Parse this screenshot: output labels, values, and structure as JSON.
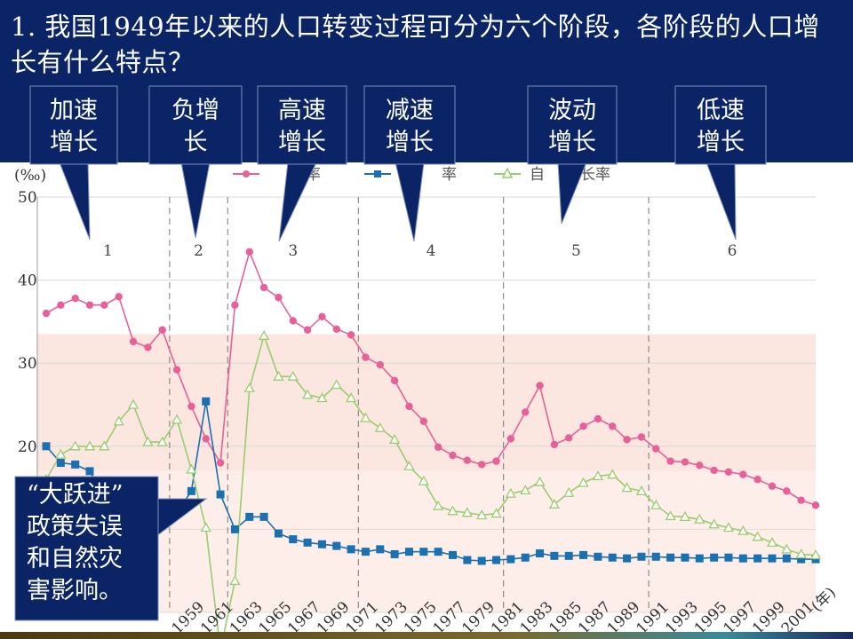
{
  "slide": {
    "question": "1. 我国1949年以来的人口转变过程可分为六个阶段，各阶段的人口增长有什么特点？"
  },
  "stage_callouts": [
    {
      "line1": "加速",
      "line2": "增长"
    },
    {
      "line1": "负增",
      "line2": "长"
    },
    {
      "line1": "高速",
      "line2": "增长"
    },
    {
      "line1": "减速",
      "line2": "增长"
    },
    {
      "line1": "波动",
      "line2": "增长"
    },
    {
      "line1": "低速",
      "line2": "增长"
    }
  ],
  "note": {
    "lines": [
      "“大跃进”",
      "政策失误",
      "和自然灾",
      "害影响。"
    ]
  },
  "colors": {
    "header_bg": "#0b2466",
    "callout_bg": "#0b2466",
    "birth": "#e8609a",
    "death": "#1a70b0",
    "natural": "#9acc70",
    "band": "#fbe6e0"
  },
  "chart_data": {
    "type": "line",
    "ylabel": "(‰)",
    "xlabel": "(年)",
    "ylim": [
      0,
      50
    ],
    "yticks": [
      20,
      30,
      40,
      50
    ],
    "xtick_labels": [
      "1959",
      "1961",
      "1963",
      "1965",
      "1967",
      "1969",
      "1971",
      "1973",
      "1975",
      "1977",
      "1979",
      "1981",
      "1983",
      "1985",
      "1987",
      "1989",
      "1991",
      "1993",
      "1995",
      "1997",
      "1999",
      "2001"
    ],
    "stage_labels": [
      "1",
      "2",
      "3",
      "4",
      "5",
      "6"
    ],
    "stage_boundaries": [
      1957.5,
      1961.5,
      1970.5,
      1980.5,
      1990.5
    ],
    "x": [
      1949,
      1950,
      1951,
      1952,
      1953,
      1954,
      1955,
      1956,
      1957,
      1958,
      1959,
      1960,
      1961,
      1962,
      1963,
      1964,
      1965,
      1966,
      1967,
      1968,
      1969,
      1970,
      1971,
      1972,
      1973,
      1974,
      1975,
      1976,
      1977,
      1978,
      1979,
      1980,
      1981,
      1982,
      1983,
      1984,
      1985,
      1986,
      1987,
      1988,
      1989,
      1990,
      1991,
      1992,
      1993,
      1994,
      1995,
      1996,
      1997,
      1998,
      1999,
      2000,
      2001,
      2002
    ],
    "legend_visible": [
      "生率",
      "死",
      "率",
      "自",
      "增长率"
    ],
    "series": [
      {
        "key": "birth",
        "values": [
          36.0,
          37.0,
          37.8,
          37.0,
          37.0,
          38.0,
          32.6,
          31.9,
          34.0,
          29.2,
          24.8,
          20.9,
          18.0,
          37.0,
          43.4,
          39.1,
          37.9,
          35.1,
          34.0,
          35.6,
          34.1,
          33.4,
          30.7,
          29.8,
          27.9,
          24.8,
          23.0,
          19.9,
          18.9,
          18.3,
          17.8,
          18.2,
          20.9,
          24.1,
          27.3,
          20.2,
          21.0,
          22.4,
          23.3,
          22.4,
          20.8,
          21.1,
          19.7,
          18.2,
          18.1,
          17.7,
          17.1,
          16.9,
          16.6,
          16.0,
          15.2,
          14.6,
          13.5,
          12.9
        ]
      },
      {
        "key": "death",
        "values": [
          20.0,
          18.0,
          17.8,
          17.0,
          14.0,
          13.2,
          12.3,
          11.4,
          10.8,
          12.0,
          14.6,
          25.4,
          14.2,
          10.0,
          11.5,
          11.5,
          9.5,
          8.8,
          8.4,
          8.2,
          8.0,
          7.6,
          7.3,
          7.6,
          7.0,
          7.3,
          7.3,
          7.3,
          6.9,
          6.3,
          6.2,
          6.3,
          6.4,
          6.6,
          7.1,
          6.8,
          6.8,
          6.9,
          6.7,
          6.6,
          6.5,
          6.7,
          6.7,
          6.6,
          6.6,
          6.5,
          6.6,
          6.6,
          6.5,
          6.5,
          6.5,
          6.5,
          6.4,
          6.4
        ]
      },
      {
        "key": "natural",
        "values": [
          16.0,
          19.0,
          20.0,
          20.0,
          20.0,
          23.0,
          25.0,
          20.5,
          20.5,
          23.2,
          17.2,
          10.2,
          -4.6,
          3.8,
          27.0,
          33.3,
          28.4,
          28.4,
          26.2,
          25.8,
          27.4,
          25.8,
          23.4,
          22.2,
          20.8,
          17.6,
          15.8,
          12.8,
          12.2,
          12.0,
          11.7,
          11.9,
          14.3,
          14.7,
          15.7,
          13.0,
          14.4,
          15.6,
          16.4,
          16.6,
          15.0,
          14.6,
          12.9,
          11.6,
          11.5,
          11.2,
          10.6,
          10.2,
          9.8,
          9.1,
          8.4,
          7.6,
          7.0,
          6.9
        ]
      }
    ]
  }
}
